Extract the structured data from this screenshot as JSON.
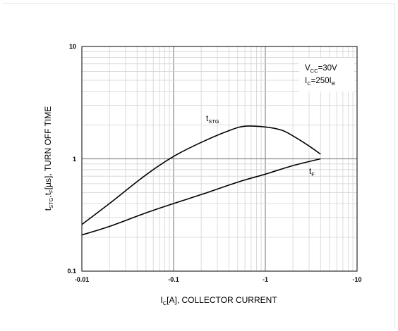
{
  "chart_data": {
    "type": "line",
    "title": "",
    "xlabel": {
      "main": "I",
      "sub": "C",
      "rest": "[A], COLLECTOR CURRENT"
    },
    "ylabel": {
      "p1": "t",
      "s1": "STG",
      "p2": ",t",
      "s2": "F",
      "p3": "[µs], TURN OFF TIME"
    },
    "x_scale": "log",
    "y_scale": "log",
    "xlim": [
      -0.01,
      -10
    ],
    "ylim": [
      0.1,
      10
    ],
    "x_ticks": [
      "-0.01",
      "-0.1",
      "-1",
      "-10"
    ],
    "y_ticks": [
      "10",
      "1",
      "0.1"
    ],
    "grid": true,
    "annotation": {
      "vcc": {
        "main": "V",
        "sub": "CC",
        "rest": "=30V"
      },
      "ic": {
        "main": "I",
        "sub": "C",
        "mid": "=250I",
        "sub2": "B"
      }
    },
    "series": [
      {
        "name": {
          "main": "t",
          "sub": "STG"
        },
        "x": [
          -0.01,
          -0.02,
          -0.05,
          -0.1,
          -0.2,
          -0.4,
          -0.6,
          -1.0,
          -1.5,
          -2.0,
          -3.0,
          -4.0
        ],
        "y": [
          0.26,
          0.4,
          0.72,
          1.05,
          1.4,
          1.78,
          1.95,
          1.92,
          1.8,
          1.6,
          1.3,
          1.1
        ]
      },
      {
        "name": {
          "main": "t",
          "sub": "F"
        },
        "x": [
          -0.01,
          -0.02,
          -0.05,
          -0.1,
          -0.2,
          -0.5,
          -1.0,
          -2.0,
          -4.0
        ],
        "y": [
          0.21,
          0.25,
          0.33,
          0.4,
          0.48,
          0.62,
          0.73,
          0.87,
          1.0
        ]
      }
    ]
  }
}
